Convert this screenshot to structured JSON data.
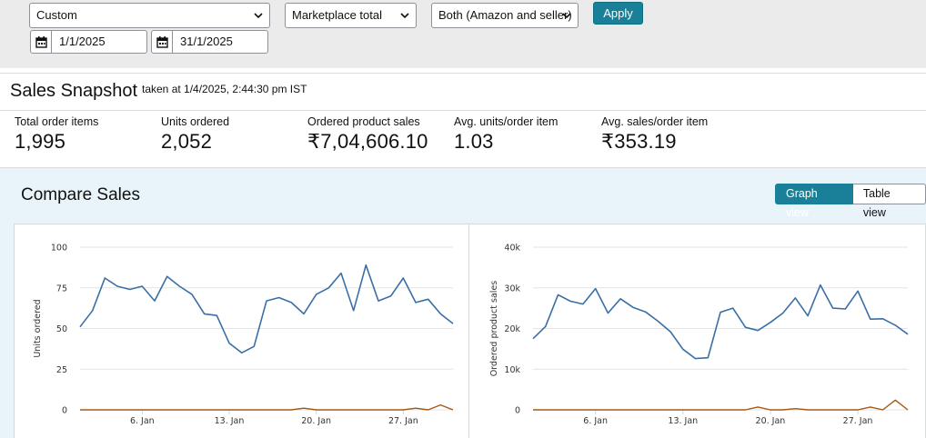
{
  "filters": {
    "date_range": "Custom",
    "marketplace": "Marketplace total",
    "fulfillment": "Both (Amazon and seller)",
    "start_date": "1/1/2025",
    "end_date": "31/1/2025",
    "apply_label": "Apply"
  },
  "snapshot": {
    "title": "Sales Snapshot",
    "taken_at": "taken at 1/4/2025, 2:44:30 pm IST",
    "metrics": [
      {
        "label": "Total order items",
        "value": "1,995"
      },
      {
        "label": "Units ordered",
        "value": "2,052"
      },
      {
        "label": "Ordered product sales",
        "value": "₹7,04,606.10"
      },
      {
        "label": "Avg. units/order item",
        "value": "1.03"
      },
      {
        "label": "Avg. sales/order item",
        "value": "₹353.19"
      }
    ]
  },
  "compare": {
    "title": "Compare Sales",
    "graph_view_label": "Graph view",
    "table_view_label": "Table view"
  },
  "colors": {
    "primary_series": "#3a6fa5",
    "secondary_series": "#a35817",
    "accent": "#1a8099"
  },
  "chart_data": [
    {
      "type": "line",
      "ylabel": "Units ordered",
      "ylim": [
        0,
        100
      ],
      "yticks": [
        "0",
        "25",
        "50",
        "75",
        "100"
      ],
      "xticks": [
        {
          "day": 6,
          "label": "6. Jan"
        },
        {
          "day": 13,
          "label": "13. Jan"
        },
        {
          "day": 20,
          "label": "20. Jan"
        },
        {
          "day": 27,
          "label": "27. Jan"
        }
      ],
      "x": [
        1,
        2,
        3,
        4,
        5,
        6,
        7,
        8,
        9,
        10,
        11,
        12,
        13,
        14,
        15,
        16,
        17,
        18,
        19,
        20,
        21,
        22,
        23,
        24,
        25,
        26,
        27,
        28,
        29,
        30,
        31
      ],
      "series": [
        {
          "values": [
            51,
            61,
            81,
            76,
            74,
            76,
            67,
            82,
            76,
            71,
            59,
            58,
            41,
            35,
            39,
            67,
            69,
            66,
            59,
            71,
            75,
            84,
            61,
            89,
            67,
            70,
            81,
            66,
            68,
            59,
            53
          ]
        },
        {
          "values": [
            0,
            0,
            0,
            0,
            0,
            0,
            0,
            0,
            0,
            0,
            0,
            0,
            0,
            0,
            0,
            0,
            0,
            0,
            1,
            0,
            0,
            0,
            0,
            0,
            0,
            0,
            0,
            1,
            0,
            3,
            0
          ]
        }
      ]
    },
    {
      "type": "line",
      "ylabel": "Ordered product sales",
      "ylim": [
        0,
        40000
      ],
      "yticks": [
        "0",
        "10k",
        "20k",
        "30k",
        "40k"
      ],
      "xticks": [
        {
          "day": 6,
          "label": "6. Jan"
        },
        {
          "day": 13,
          "label": "13. Jan"
        },
        {
          "day": 20,
          "label": "20. Jan"
        },
        {
          "day": 27,
          "label": "27. Jan"
        }
      ],
      "x": [
        1,
        2,
        3,
        4,
        5,
        6,
        7,
        8,
        9,
        10,
        11,
        12,
        13,
        14,
        15,
        16,
        17,
        18,
        19,
        20,
        21,
        22,
        23,
        24,
        25,
        26,
        27,
        28,
        29,
        30,
        31
      ],
      "series": [
        {
          "values": [
            17500,
            20500,
            28300,
            26700,
            26000,
            29800,
            23800,
            27300,
            25200,
            24100,
            21800,
            19200,
            14900,
            12600,
            12800,
            24000,
            25000,
            20300,
            19500,
            21500,
            23800,
            27500,
            23100,
            30700,
            25000,
            24800,
            29200,
            22300,
            22400,
            20800,
            18600
          ]
        },
        {
          "values": [
            0,
            0,
            0,
            0,
            0,
            0,
            0,
            0,
            0,
            0,
            0,
            0,
            0,
            0,
            0,
            0,
            0,
            0,
            700,
            0,
            0,
            300,
            0,
            0,
            0,
            0,
            0,
            700,
            0,
            2400,
            0
          ]
        }
      ]
    }
  ]
}
